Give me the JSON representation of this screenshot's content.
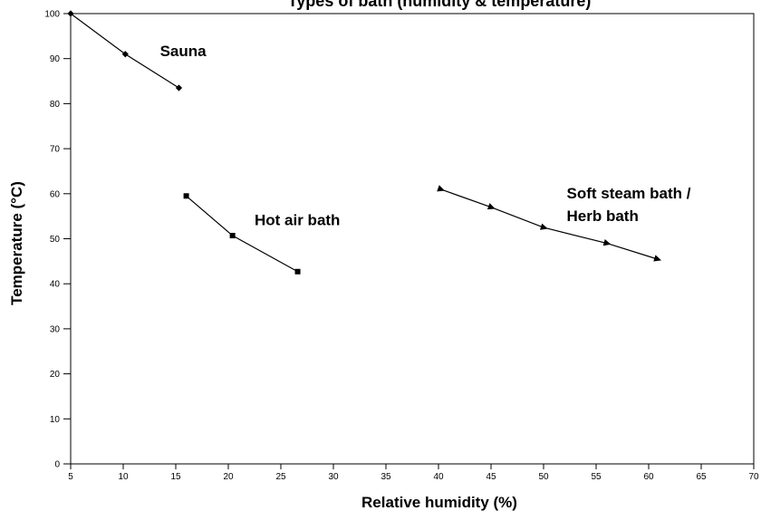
{
  "chart_data": {
    "type": "line",
    "title": "Types of bath (humidity & temperature)",
    "xlabel": "Relative humidity (%)",
    "ylabel": "Temperature (°C)",
    "xlim": [
      5,
      70
    ],
    "ylim": [
      0,
      100
    ],
    "x_ticks": [
      5,
      10,
      15,
      20,
      25,
      30,
      35,
      40,
      45,
      50,
      55,
      60,
      65,
      70
    ],
    "y_ticks": [
      0,
      10,
      20,
      30,
      40,
      50,
      60,
      70,
      80,
      90,
      100
    ],
    "grid": false,
    "legend": "none",
    "series": [
      {
        "key": "sauna",
        "label_lines": [
          "Sauna"
        ],
        "label_anchor": {
          "x": 13.5,
          "y": 90.5
        },
        "marker": "diamond",
        "x": [
          5,
          10.2,
          15.3
        ],
        "y": [
          100,
          91,
          83.5
        ]
      },
      {
        "key": "hot_air",
        "label_lines": [
          "Hot air bath"
        ],
        "label_anchor": {
          "x": 22.5,
          "y": 53
        },
        "marker": "square",
        "x": [
          16,
          20.4,
          26.6
        ],
        "y": [
          59.5,
          50.7,
          42.7
        ]
      },
      {
        "key": "soft_steam",
        "label_lines": [
          "Soft steam bath /",
          "Herb bath"
        ],
        "label_anchor": {
          "x": 52.2,
          "y": 59
        },
        "marker": "triangle",
        "x": [
          40.2,
          45,
          50,
          56,
          60.8
        ],
        "y": [
          61,
          57,
          52.5,
          49,
          45.5
        ]
      }
    ]
  }
}
